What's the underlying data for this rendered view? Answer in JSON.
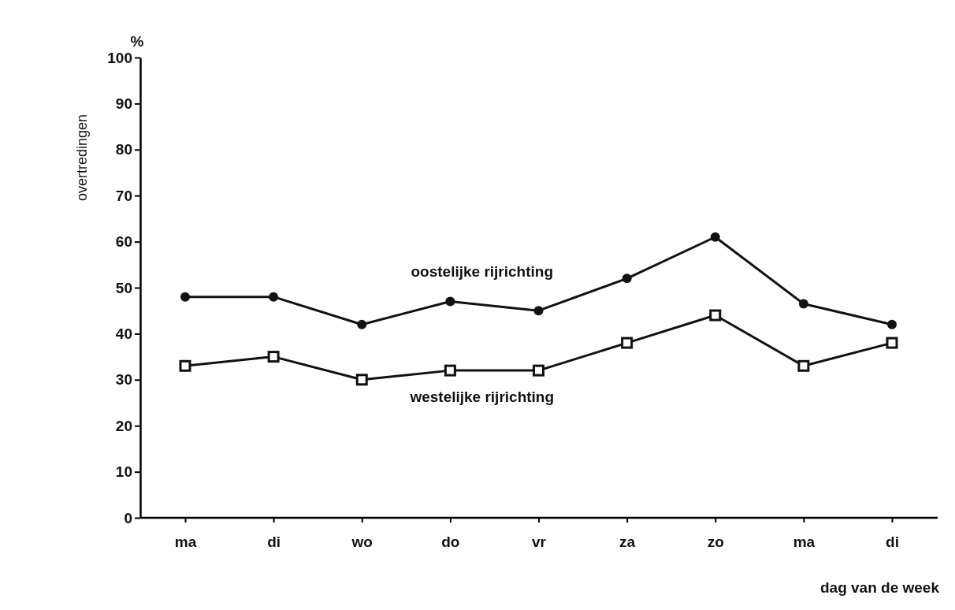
{
  "chart_data": {
    "type": "line",
    "xlabel": "dag van de week",
    "ylabel": "overtredingen",
    "annotations": [
      "%"
    ],
    "categories": [
      "ma",
      "di",
      "wo",
      "do",
      "vr",
      "za",
      "zo",
      "ma",
      "di"
    ],
    "series": [
      {
        "name": "oostelijke rijrichting",
        "color": "#111111",
        "marker": "circle",
        "values": [
          48,
          48,
          42,
          47,
          45,
          52,
          61,
          46.5,
          42
        ]
      },
      {
        "name": "westelijke rijrichting",
        "color": "#111111",
        "marker": "square",
        "values": [
          33,
          35,
          30,
          32,
          32,
          38,
          44,
          33,
          38
        ]
      }
    ],
    "ylim": [
      0,
      100
    ],
    "yticks": [
      0,
      10,
      20,
      30,
      40,
      50,
      60,
      70,
      80,
      90,
      100
    ],
    "grid": false,
    "line_style": "solid"
  }
}
